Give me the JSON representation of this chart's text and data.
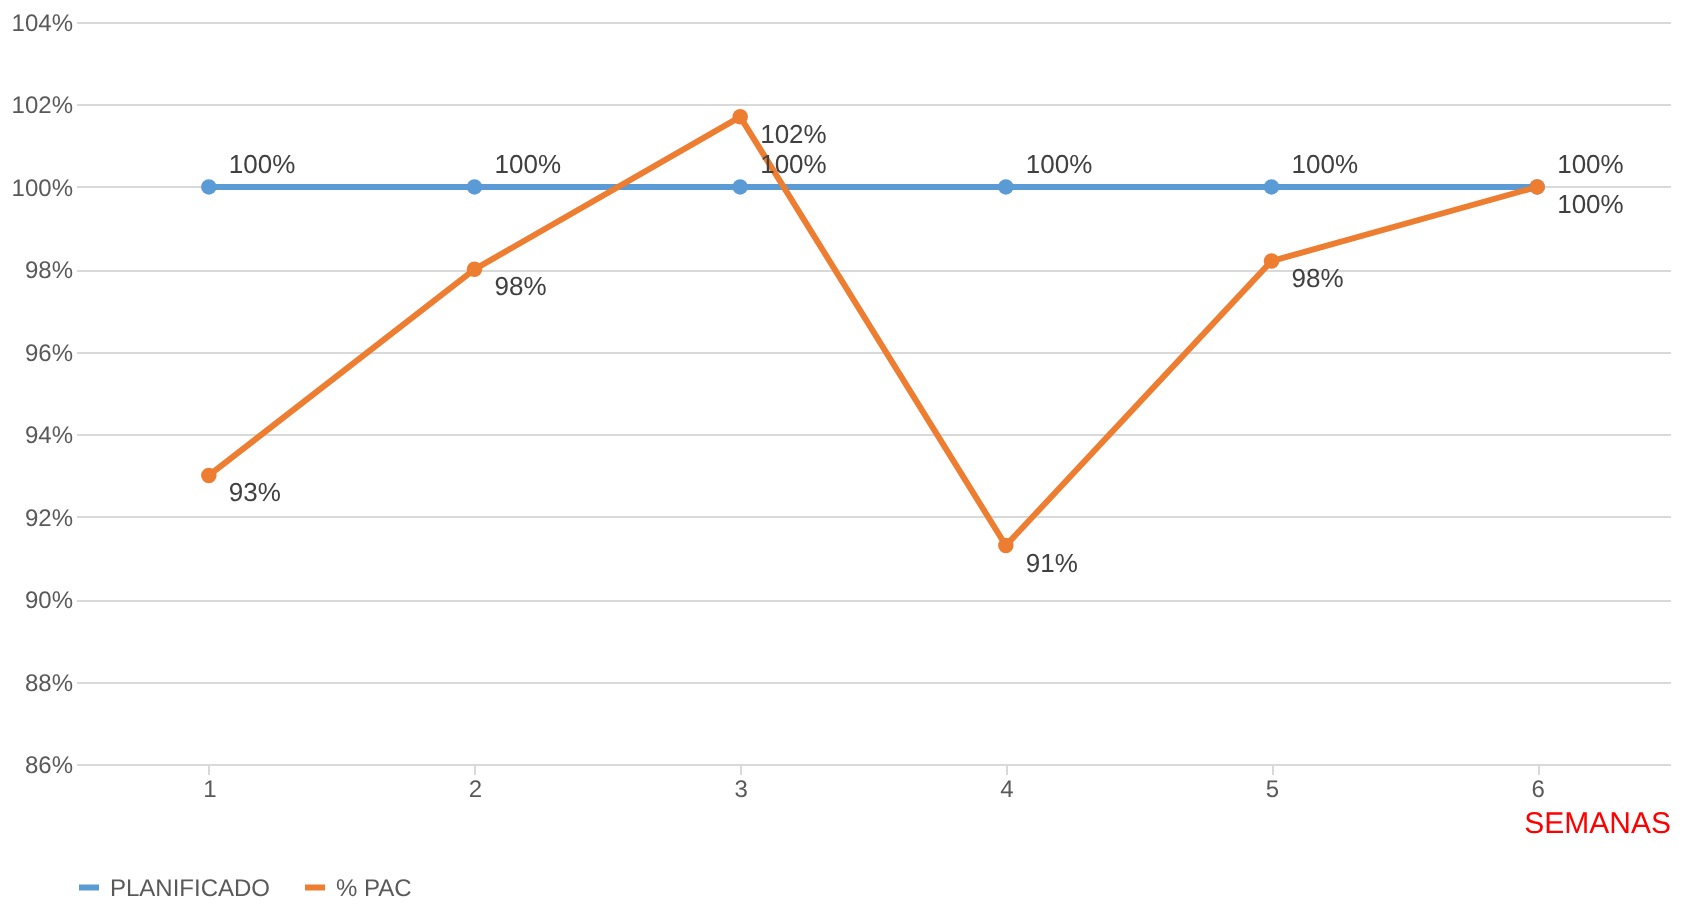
{
  "chart_data": {
    "type": "line",
    "categories": [
      "1",
      "2",
      "3",
      "4",
      "5",
      "6"
    ],
    "xlabel": "SEMANAS",
    "series": [
      {
        "name": "PLANIFICADO",
        "color": "#5b9bd5",
        "values": [
          100,
          100,
          100,
          100,
          100,
          100
        ],
        "value_labels": [
          "100%",
          "100%",
          "100%",
          "100%",
          "100%",
          "100%"
        ]
      },
      {
        "name": "% PAC",
        "color": "#ed7d31",
        "values": [
          93.0,
          98.0,
          101.7,
          91.3,
          98.2,
          100
        ],
        "value_labels": [
          "93%",
          "98%",
          "102%",
          "91%",
          "98%",
          "100%"
        ]
      }
    ],
    "ylim": [
      86,
      104
    ],
    "yticks": [
      {
        "value": 86,
        "label": "86%"
      },
      {
        "value": 88,
        "label": "88%"
      },
      {
        "value": 90,
        "label": "90%"
      },
      {
        "value": 92,
        "label": "92%"
      },
      {
        "value": 94,
        "label": "94%"
      },
      {
        "value": 96,
        "label": "96%"
      },
      {
        "value": 98,
        "label": "98%"
      },
      {
        "value": 100,
        "label": "100%"
      },
      {
        "value": 102,
        "label": "102%"
      },
      {
        "value": 104,
        "label": "104%"
      }
    ],
    "grid": "y",
    "legend": "bottom",
    "marker": "circle",
    "line_style": "solid"
  }
}
